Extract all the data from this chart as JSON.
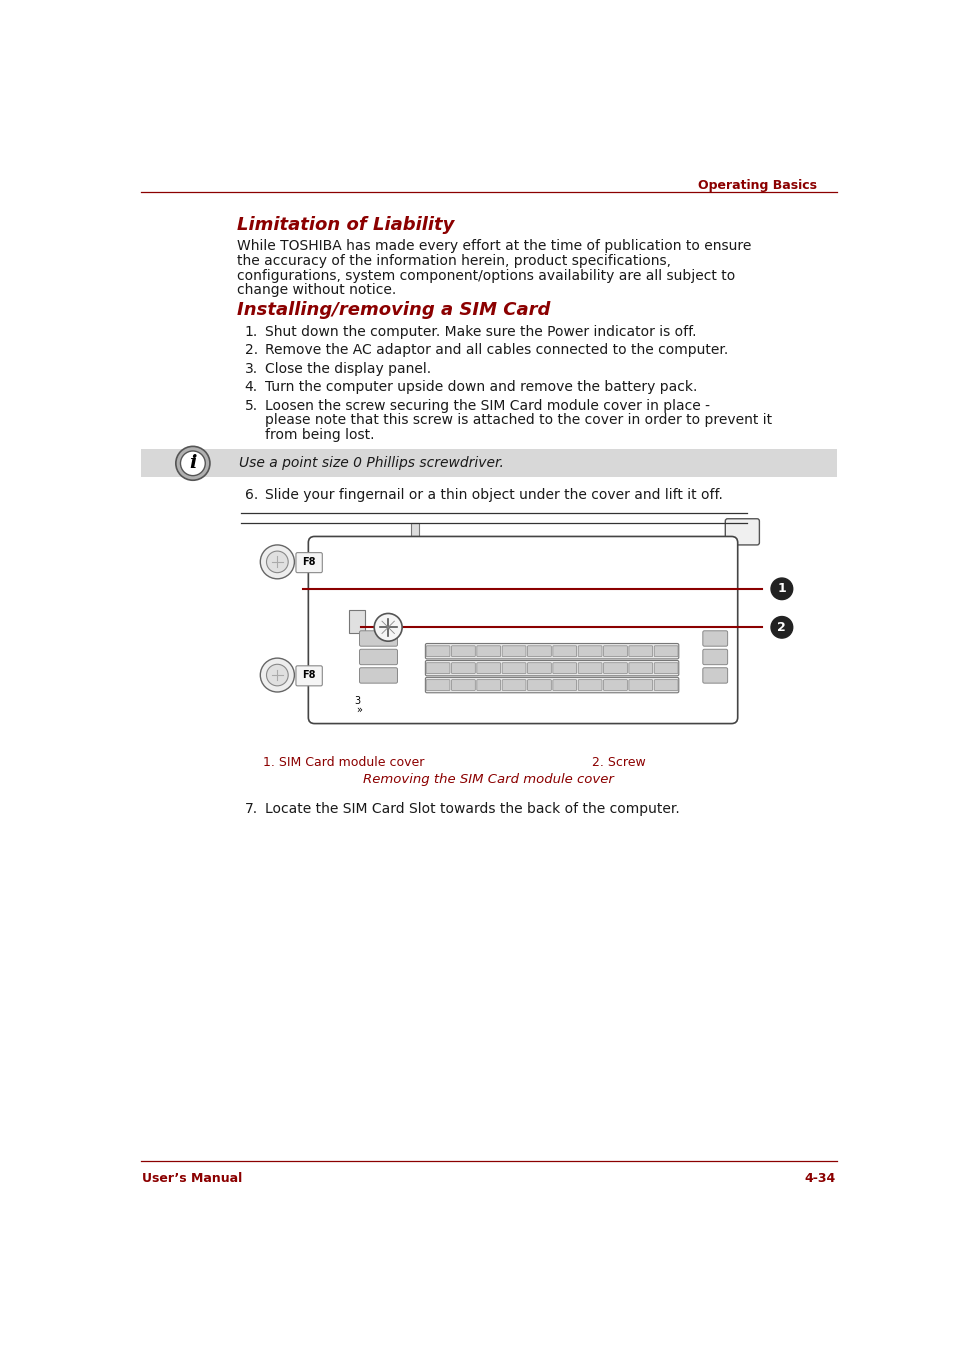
{
  "page_header": "Operating Basics",
  "section1_title": "Limitation of Liability",
  "section1_body_lines": [
    "While TOSHIBA has made every effort at the time of publication to ensure",
    "the accuracy of the information herein, product specifications,",
    "configurations, system component/options availability are all subject to",
    "change without notice."
  ],
  "section2_title": "Installing/removing a SIM Card",
  "list_items": [
    "Shut down the computer. Make sure the Power indicator is off.",
    "Remove the AC adaptor and all cables connected to the computer.",
    "Close the display panel.",
    "Turn the computer upside down and remove the battery pack.",
    "Loosen the screw securing the SIM Card module cover in place -",
    "please note that this screw is attached to the cover in order to prevent it",
    "from being lost."
  ],
  "note_text": "Use a point size 0 Phillips screwdriver.",
  "step6_text": "Slide your fingernail or a thin object under the cover and lift it off.",
  "caption1": "1. SIM Card module cover",
  "caption2": "2. Screw",
  "fig_caption": "Removing the SIM Card module cover",
  "step7_text": "Locate the SIM Card Slot towards the back of the computer.",
  "footer_left": "User’s Manual",
  "footer_right": "4-34",
  "red_color": "#8B0000",
  "dark_color": "#1a1a1a",
  "body_font_size": 10,
  "title_font_size": 13,
  "background_color": "#ffffff"
}
